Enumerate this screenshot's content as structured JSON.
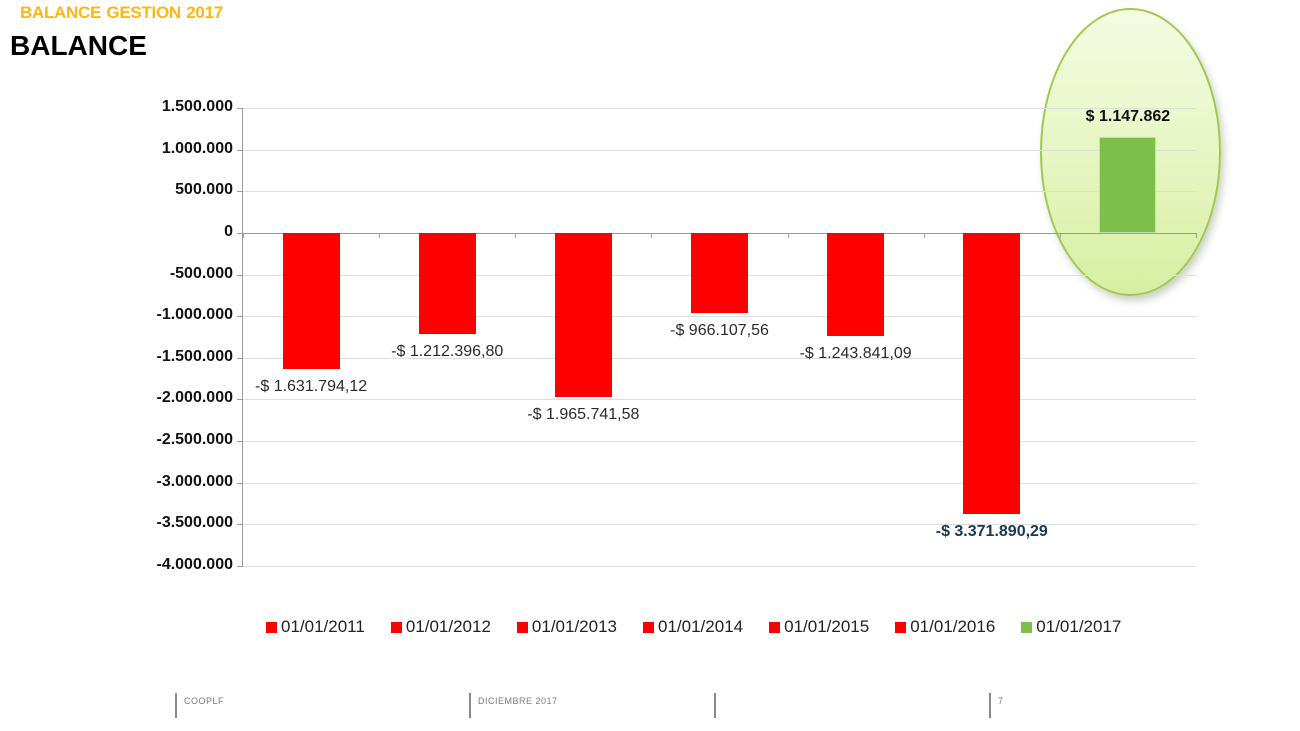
{
  "slide": {
    "kicker": "BALANCE GESTION 2017",
    "title": "BALANCE",
    "accent_color": "#FFB612"
  },
  "chart_data": {
    "type": "bar",
    "title": "BALANCE",
    "categories": [
      "01/01/2011",
      "01/01/2012",
      "01/01/2013",
      "01/01/2014",
      "01/01/2015",
      "01/01/2016",
      "01/01/2017"
    ],
    "values": [
      -1631794.12,
      -1212396.8,
      -1965741.58,
      -966107.56,
      -1243841.09,
      -3371890.29,
      1147862
    ],
    "value_labels": [
      "-$ 1.631.794,12",
      "-$ 1.212.396,80",
      "-$ 1.965.741,58",
      "-$ 966.107,56",
      "-$ 1.243.841,09",
      "-$ 3.371.890,29",
      "$ 1.147.862"
    ],
    "bar_colors": [
      "#FE0000",
      "#FE0000",
      "#FE0000",
      "#FE0000",
      "#FE0000",
      "#FE0000",
      "#7CBF4A"
    ],
    "negative_color": "#FE0000",
    "positive_color": "#7CBF4A",
    "ylim": [
      -4000000,
      1500000
    ],
    "ytick_step": 500000,
    "ytick_labels": [
      "1.500.000",
      "1.000.000",
      "500.000",
      "0",
      "-500.000",
      "-1.000.000",
      "-1.500.000",
      "-2.000.000",
      "-2.500.000",
      "-3.000.000",
      "-3.500.000",
      "-4.000.000"
    ],
    "grid": true,
    "legend_position": "bottom",
    "legend": [
      {
        "label": "01/01/2011",
        "color": "#FE0000"
      },
      {
        "label": "01/01/2012",
        "color": "#FE0000"
      },
      {
        "label": "01/01/2013",
        "color": "#FE0000"
      },
      {
        "label": "01/01/2014",
        "color": "#FE0000"
      },
      {
        "label": "01/01/2015",
        "color": "#FE0000"
      },
      {
        "label": "01/01/2016",
        "color": "#FE0000"
      },
      {
        "label": "01/01/2017",
        "color": "#7CBF4A"
      }
    ],
    "highlight": {
      "series": "01/01/2017",
      "label": "$ 1.147.862"
    }
  },
  "footer": {
    "items": [
      {
        "text": "COOPLF"
      },
      {
        "text": "DICIEMBRE 2017"
      },
      {
        "text": ""
      },
      {
        "text": "7"
      }
    ]
  }
}
